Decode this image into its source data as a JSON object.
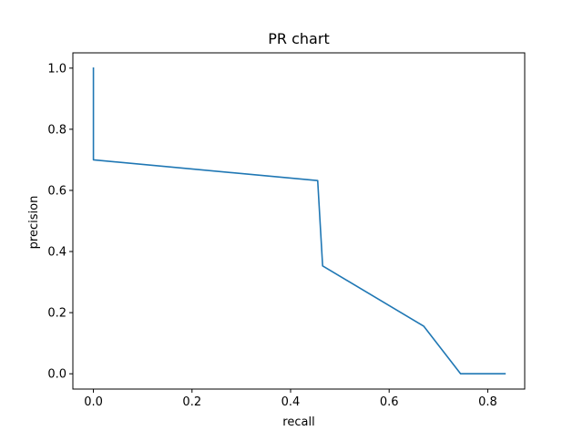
{
  "chart_data": {
    "type": "line",
    "title": "PR chart",
    "xlabel": "recall",
    "ylabel": "precision",
    "xlim": [
      -0.0417,
      0.875
    ],
    "ylim": [
      -0.05,
      1.05
    ],
    "x_ticks": [
      0.0,
      0.2,
      0.4,
      0.6,
      0.8
    ],
    "x_tick_labels": [
      "0.0",
      "0.2",
      "0.4",
      "0.6",
      "0.8"
    ],
    "y_ticks": [
      0.0,
      0.2,
      0.4,
      0.6,
      0.8,
      1.0
    ],
    "y_tick_labels": [
      "0.0",
      "0.2",
      "0.4",
      "0.6",
      "0.8",
      "1.0"
    ],
    "grid": false,
    "series": [
      {
        "color": "#1f77b4",
        "x": [
          0.0,
          0.0,
          0.455,
          0.465,
          0.67,
          0.745,
          0.835
        ],
        "y": [
          1.0,
          0.7,
          0.632,
          0.353,
          0.156,
          0.0,
          0.0
        ]
      }
    ]
  }
}
